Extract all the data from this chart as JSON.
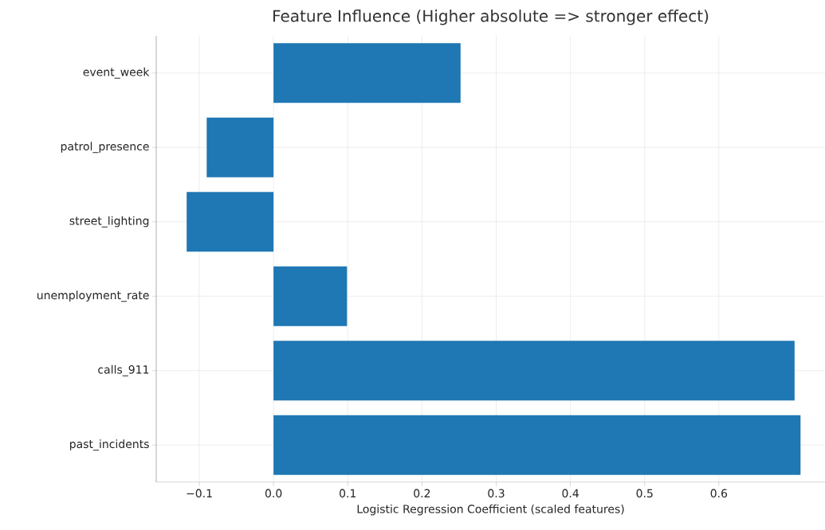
{
  "chart_data": {
    "type": "bar",
    "orientation": "horizontal",
    "title": "Feature Influence (Higher absolute => stronger effect)",
    "xlabel": "Logistic Regression Coefficient (scaled features)",
    "categories": [
      "event_week",
      "patrol_presence",
      "street_lighting",
      "unemployment_rate",
      "calls_911",
      "past_incidents"
    ],
    "values": [
      0.252,
      -0.09,
      -0.117,
      0.099,
      0.702,
      0.71
    ],
    "color": "#1f77b4",
    "xlim": [
      -0.158,
      0.743
    ],
    "xticks": [
      {
        "value": -0.1,
        "label": "−0.1"
      },
      {
        "value": 0,
        "label": "0.0"
      },
      0.1,
      0.2,
      0.3,
      0.4,
      0.5,
      0.6
    ],
    "grid": true
  }
}
